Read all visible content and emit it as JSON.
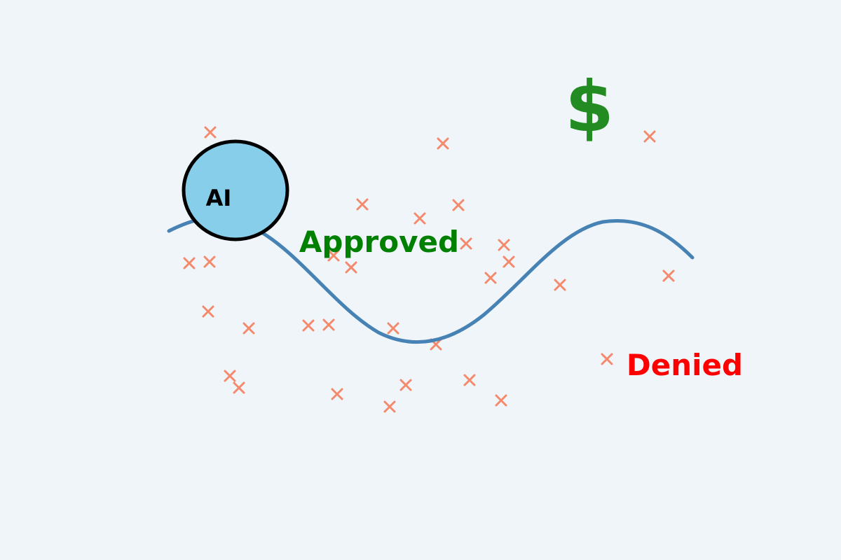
{
  "labels": {
    "ai": "AI",
    "approved": "Approved",
    "denied": "Denied",
    "dollar": "$"
  },
  "colors": {
    "background": "#f0f5fa",
    "ai_circle_fill": "#87ceeb",
    "ai_circle_stroke": "#000000",
    "boundary_curve": "#4682b4",
    "markers": "#f4896b",
    "approved": "#008000",
    "denied": "#ff0000",
    "dollar": "#228b22"
  },
  "icons": {
    "markers": "x-mark-icon",
    "dollar": "dollar-sign-icon"
  }
}
